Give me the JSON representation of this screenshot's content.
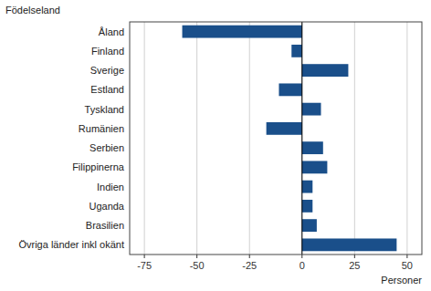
{
  "chart_data": {
    "type": "bar",
    "orientation": "horizontal",
    "x_label": "Personer",
    "y_label": "Födelseland",
    "categories": [
      "Åland",
      "Finland",
      "Sverige",
      "Estland",
      "Tyskland",
      "Rumänien",
      "Serbien",
      "Filippinerna",
      "Indien",
      "Uganda",
      "Brasilien",
      "Övriga länder inkl okänt"
    ],
    "values": [
      -57,
      -5,
      22,
      -11,
      9,
      -17,
      10,
      12,
      5,
      5,
      7,
      45
    ],
    "color": "#1a4f8a",
    "xlim": [
      -82,
      57
    ],
    "xticks": [
      -75,
      -50,
      -25,
      0,
      25,
      50
    ],
    "grid": true
  }
}
